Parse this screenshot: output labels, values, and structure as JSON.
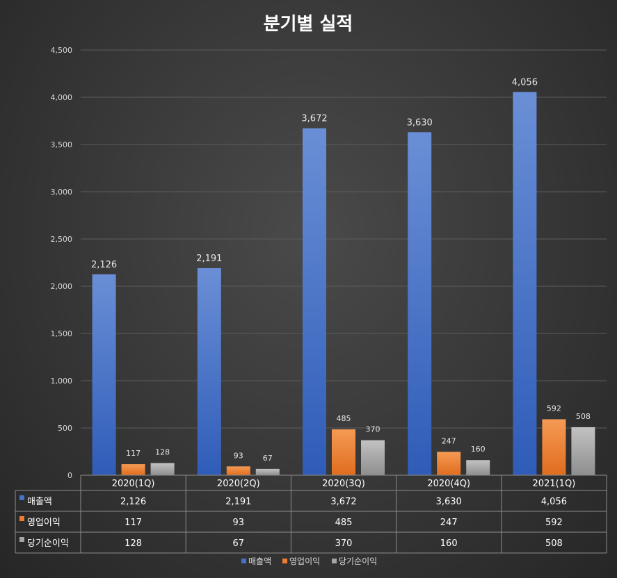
{
  "chart_data": {
    "type": "bar",
    "title": "분기별 실적",
    "categories": [
      "2020(1Q)",
      "2020(2Q)",
      "2020(3Q)",
      "2020(4Q)",
      "2021(1Q)"
    ],
    "series": [
      {
        "name": "매출액",
        "values": [
          2126,
          2191,
          3672,
          3630,
          4056
        ],
        "labels": [
          "2,126",
          "2,191",
          "3,672",
          "3,630",
          "4,056"
        ],
        "color": "#4472C4"
      },
      {
        "name": "영업이익",
        "values": [
          117,
          93,
          485,
          247,
          592
        ],
        "labels": [
          "117",
          "93",
          "485",
          "247",
          "592"
        ],
        "color": "#ED7D31"
      },
      {
        "name": "당기순이익",
        "values": [
          128,
          67,
          370,
          160,
          508
        ],
        "labels": [
          "128",
          "67",
          "370",
          "160",
          "508"
        ],
        "color": "#A5A5A5"
      }
    ],
    "yticks": [
      "0",
      "500",
      "1,000",
      "1,500",
      "2,000",
      "2,500",
      "3,000",
      "3,500",
      "4,000",
      "4,500"
    ],
    "ylim": [
      0,
      4500
    ],
    "xlabel": "",
    "ylabel": "",
    "grid": true,
    "legend": "bottom",
    "data_table": true
  }
}
